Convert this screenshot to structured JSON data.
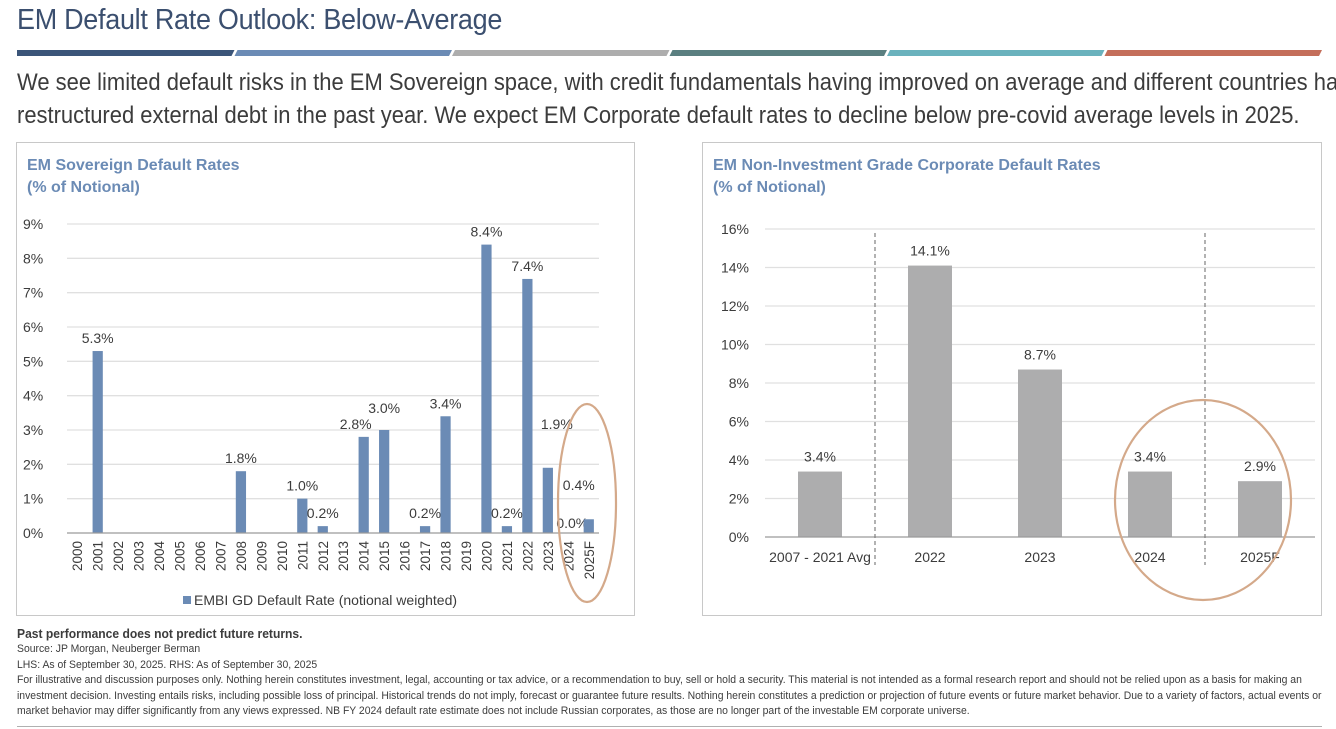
{
  "header": {
    "title": "EM Default Rate Outlook: Below-Average",
    "stripe_colors": [
      "#3b5579",
      "#6b8bb5",
      "#adadad",
      "#5a7f80",
      "#6ab2bd",
      "#c46e5a"
    ],
    "subtitle_line1": "We see limited default risks in the EM Sovereign space, with credit fundamentals having improved on average and different countries having",
    "subtitle_line2": "restructured external debt in the past year. We expect EM Corporate default rates to decline below pre-covid average levels in 2025."
  },
  "left_panel": {
    "title_line1": "EM Sovereign Default Rates",
    "title_line2": "(% of Notional)"
  },
  "right_panel": {
    "title_line1": "EM Non-Investment Grade Corporate Default Rates",
    "title_line2": "(% of Notional)"
  },
  "chart_data": [
    {
      "type": "bar",
      "title": "EM Sovereign Default Rates (% of Notional)",
      "xlabel": "",
      "ylabel": "",
      "ylim": [
        0,
        9
      ],
      "yticks": [
        0,
        1,
        2,
        3,
        4,
        5,
        6,
        7,
        8,
        9
      ],
      "ytick_labels": [
        "0%",
        "1%",
        "2%",
        "3%",
        "4%",
        "5%",
        "6%",
        "7%",
        "8%",
        "9%"
      ],
      "grid": true,
      "color": "#6b8bb5",
      "categories": [
        "2000",
        "2001",
        "2002",
        "2003",
        "2004",
        "2005",
        "2006",
        "2007",
        "2008",
        "2009",
        "2010",
        "2011",
        "2012",
        "2013",
        "2014",
        "2015",
        "2016",
        "2017",
        "2018",
        "2019",
        "2020",
        "2021",
        "2022",
        "2023",
        "2024",
        "2025F"
      ],
      "values": [
        0,
        5.3,
        0,
        0,
        0,
        0,
        0,
        0,
        1.8,
        0,
        0,
        1.0,
        0.2,
        0,
        2.8,
        3.0,
        0,
        0.2,
        3.4,
        0,
        8.4,
        0.2,
        7.4,
        1.9,
        0.0,
        0.4
      ],
      "data_labels": [
        "",
        "5.3%",
        "",
        "",
        "",
        "",
        "",
        "",
        "1.8%",
        "",
        "",
        "1.0%",
        "0.2%",
        "",
        "2.8%",
        "3.0%",
        "",
        "0.2%",
        "3.4%",
        "",
        "8.4%",
        "0.2%",
        "7.4%",
        "1.9%",
        "0.0%",
        "0.4%"
      ],
      "legend": {
        "position": "bottom",
        "entries": [
          "EMBI GD Default Rate (notional weighted)"
        ]
      },
      "annotation": {
        "type": "ellipse",
        "highlights": [
          "2024",
          "2025F"
        ],
        "color": "#d4a98a"
      }
    },
    {
      "type": "bar",
      "title": "EM Non-Investment Grade Corporate Default Rates (% of Notional)",
      "xlabel": "",
      "ylabel": "",
      "ylim": [
        0,
        16
      ],
      "yticks": [
        0,
        2,
        4,
        6,
        8,
        10,
        12,
        14,
        16
      ],
      "ytick_labels": [
        "0%",
        "2%",
        "4%",
        "6%",
        "8%",
        "10%",
        "12%",
        "14%",
        "16%"
      ],
      "grid": true,
      "color": "#adadae",
      "categories": [
        "2007 - 2021 Avg",
        "2022",
        "2023",
        "2024",
        "2025F"
      ],
      "values": [
        3.4,
        14.1,
        8.7,
        3.4,
        2.9
      ],
      "data_labels": [
        "3.4%",
        "14.1%",
        "8.7%",
        "3.4%",
        "2.9%"
      ],
      "dividers_after": [
        "2007 - 2021 Avg",
        "2024"
      ],
      "annotation": {
        "type": "ellipse",
        "highlights": [
          "2024",
          "2025F"
        ],
        "color": "#d4a98a"
      }
    }
  ],
  "footer": {
    "performance_note": "Past performance does not predict future returns.",
    "source": "Source: JP Morgan, Neuberger Berman",
    "as_of": "LHS: As of September 30, 2025. RHS: As of September 30, 2025",
    "disclaimer": "For illustrative and discussion purposes only. Nothing herein constitutes investment, legal, accounting or tax advice, or a recommendation to buy, sell or hold a security. This material is not intended as a formal research report and should not be relied upon as a basis for making an investment decision. Investing entails risks, including possible loss of principal. Historical trends do not imply, forecast or guarantee future results. Nothing herein constitutes a prediction or projection of future events or future market behavior. Due to a variety of factors, actual events or market behavior may differ significantly from any views expressed. NB FY 2024 default rate estimate does not include Russian corporates, as those are no longer part of the investable EM corporate universe."
  }
}
